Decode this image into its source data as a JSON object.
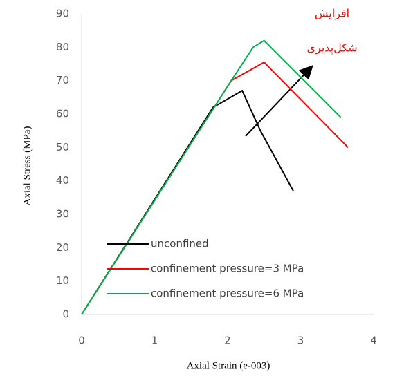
{
  "chart_data": {
    "type": "line",
    "x_label": "Axial Strain (e-003)",
    "y_label": "Axial Stress (MPa)",
    "xlim": [
      0,
      4
    ],
    "xticks": [
      0,
      1,
      2,
      3,
      4
    ],
    "ylim": [
      0,
      90
    ],
    "yticks": [
      0,
      10,
      20,
      30,
      40,
      50,
      60,
      70,
      80,
      90
    ],
    "grid": false,
    "legend": "lower left",
    "annotations": [
      "افزایش",
      "شکل‌پذیری"
    ],
    "series": [
      {
        "name": "unconfined",
        "color": "#000000",
        "x": [
          0,
          1.8,
          2.2,
          2.45,
          2.7,
          2.9
        ],
        "values": [
          0,
          62,
          67,
          55,
          45,
          37
        ]
      },
      {
        "name": "confinement pressure=3 MPa",
        "color": "#ff0000",
        "x": [
          0,
          2.05,
          2.5,
          3.65
        ],
        "values": [
          0,
          70,
          75.5,
          50
        ]
      },
      {
        "name": "confinement pressure=6 MPa",
        "color": "#00b050",
        "x": [
          0,
          2.05,
          2.35,
          2.5,
          3.55
        ],
        "values": [
          0,
          70,
          80,
          82,
          59
        ]
      }
    ]
  }
}
